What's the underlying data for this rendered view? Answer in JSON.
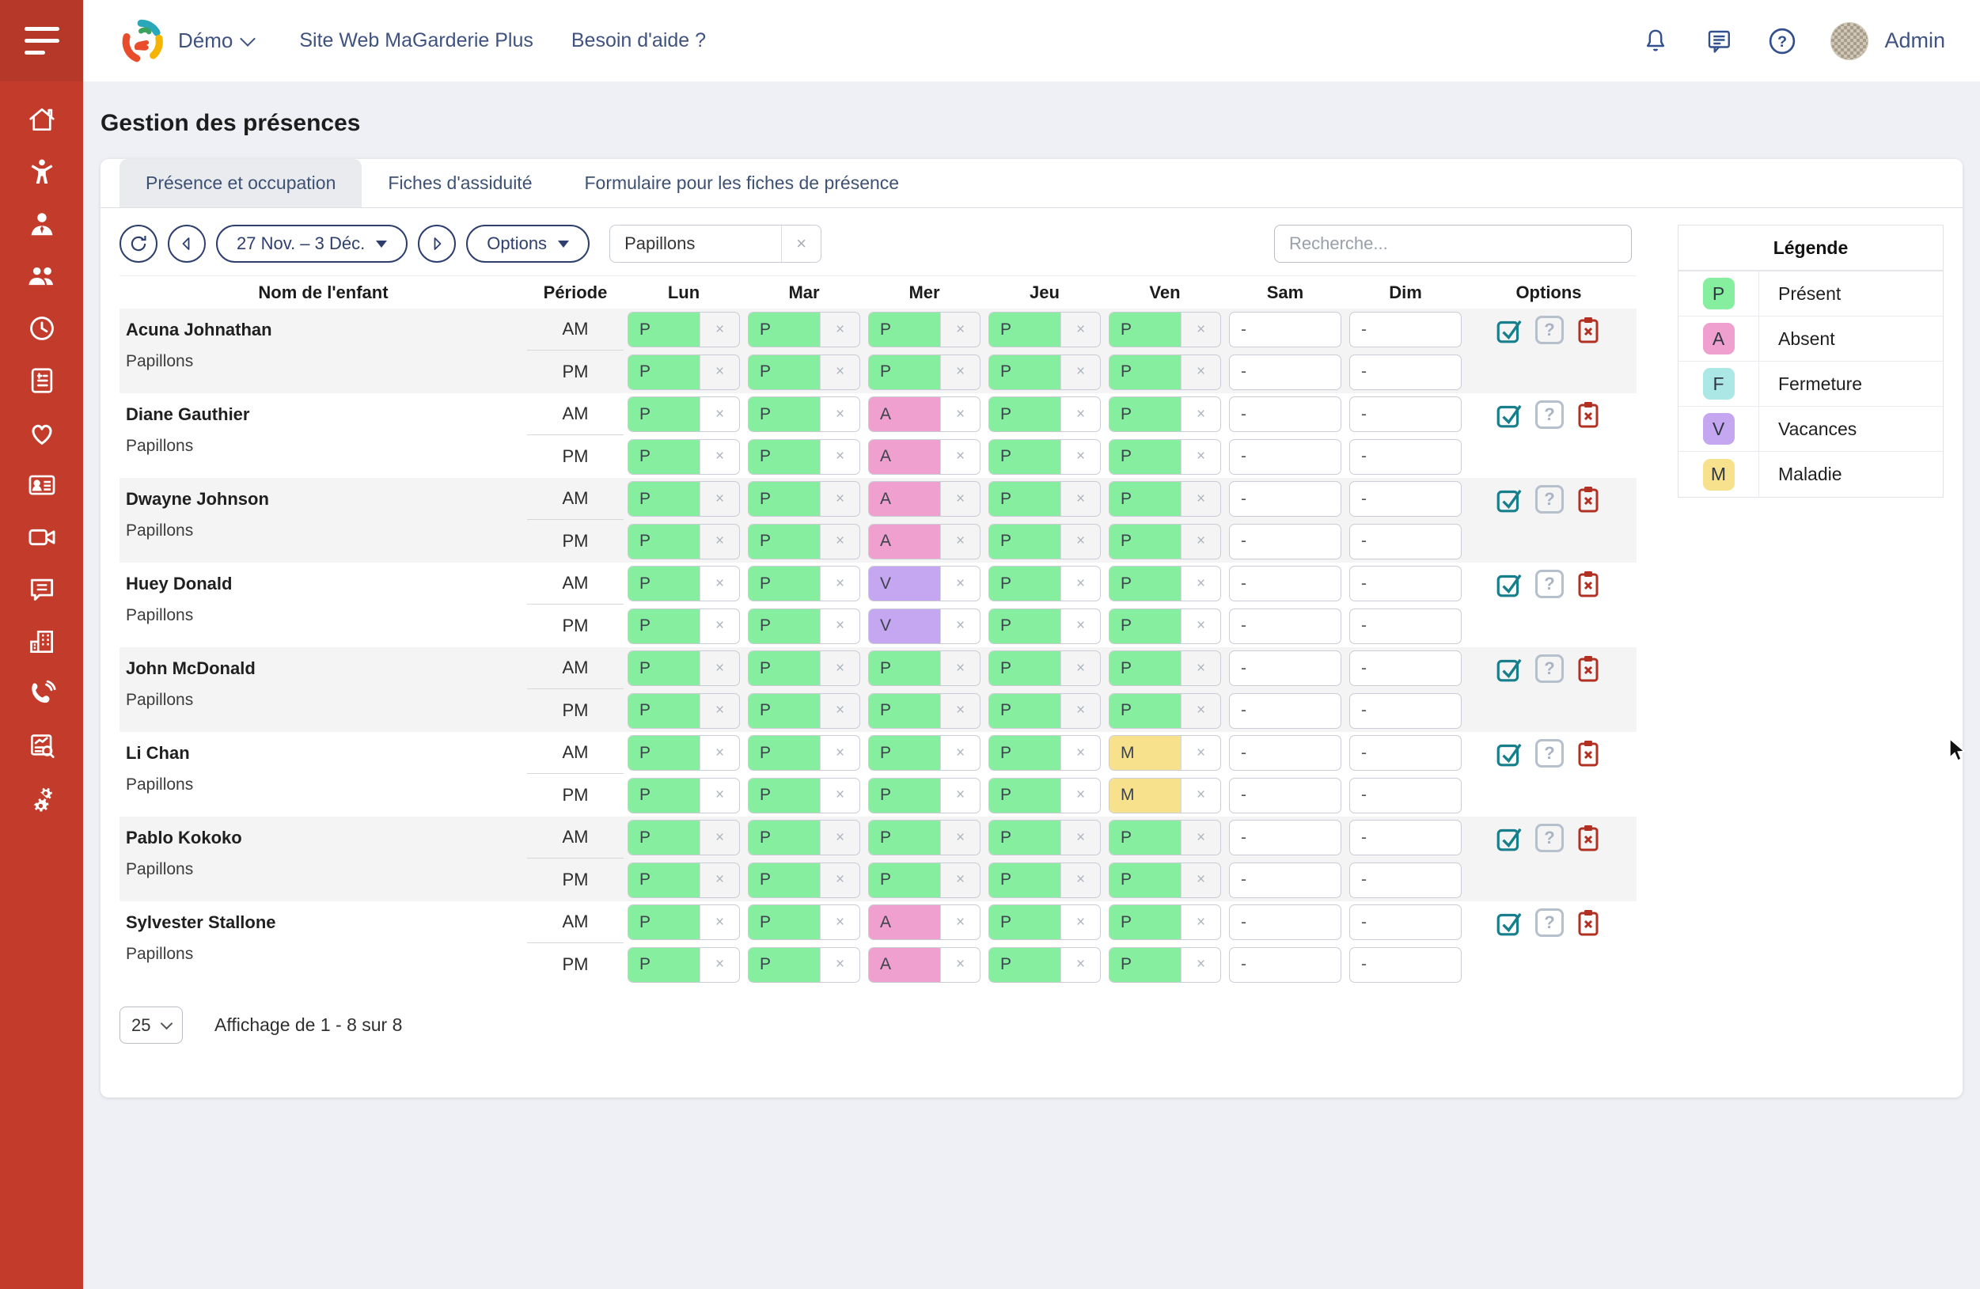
{
  "header": {
    "brand": "Démo",
    "links": [
      "Site Web MaGarderie Plus",
      "Besoin d'aide ?"
    ],
    "user": "Admin"
  },
  "page_title": "Gestion des présences",
  "tabs": [
    {
      "label": "Présence et occupation",
      "active": true
    },
    {
      "label": "Fiches d'assiduité",
      "active": false
    },
    {
      "label": "Formulaire pour les fiches de présence",
      "active": false
    }
  ],
  "toolbar": {
    "date_range": "27 Nov. – 3 Déc.",
    "options_label": "Options",
    "filter_chip": "Papillons",
    "search_placeholder": "Recherche..."
  },
  "table": {
    "columns": [
      "Nom de l'enfant",
      "Période",
      "Lun",
      "Mar",
      "Mer",
      "Jeu",
      "Ven",
      "Sam",
      "Dim",
      "Options"
    ],
    "period_labels": [
      "AM",
      "PM"
    ],
    "rows": [
      {
        "name": "Acuna Johnathan",
        "group": "Papillons",
        "am": [
          "P",
          "P",
          "P",
          "P",
          "P",
          "-",
          "-"
        ],
        "pm": [
          "P",
          "P",
          "P",
          "P",
          "P",
          "-",
          "-"
        ]
      },
      {
        "name": "Diane Gauthier",
        "group": "Papillons",
        "am": [
          "P",
          "P",
          "A",
          "P",
          "P",
          "-",
          "-"
        ],
        "pm": [
          "P",
          "P",
          "A",
          "P",
          "P",
          "-",
          "-"
        ]
      },
      {
        "name": "Dwayne Johnson",
        "group": "Papillons",
        "am": [
          "P",
          "P",
          "A",
          "P",
          "P",
          "-",
          "-"
        ],
        "pm": [
          "P",
          "P",
          "A",
          "P",
          "P",
          "-",
          "-"
        ]
      },
      {
        "name": "Huey Donald",
        "group": "Papillons",
        "am": [
          "P",
          "P",
          "V",
          "P",
          "P",
          "-",
          "-"
        ],
        "pm": [
          "P",
          "P",
          "V",
          "P",
          "P",
          "-",
          "-"
        ]
      },
      {
        "name": "John McDonald",
        "group": "Papillons",
        "am": [
          "P",
          "P",
          "P",
          "P",
          "P",
          "-",
          "-"
        ],
        "pm": [
          "P",
          "P",
          "P",
          "P",
          "P",
          "-",
          "-"
        ]
      },
      {
        "name": "Li Chan",
        "group": "Papillons",
        "am": [
          "P",
          "P",
          "P",
          "P",
          "M",
          "-",
          "-"
        ],
        "pm": [
          "P",
          "P",
          "P",
          "P",
          "M",
          "-",
          "-"
        ]
      },
      {
        "name": "Pablo Kokoko",
        "group": "Papillons",
        "am": [
          "P",
          "P",
          "P",
          "P",
          "P",
          "-",
          "-"
        ],
        "pm": [
          "P",
          "P",
          "P",
          "P",
          "P",
          "-",
          "-"
        ]
      },
      {
        "name": "Sylvester Stallone",
        "group": "Papillons",
        "am": [
          "P",
          "P",
          "A",
          "P",
          "P",
          "-",
          "-"
        ],
        "pm": [
          "P",
          "P",
          "A",
          "P",
          "P",
          "-",
          "-"
        ]
      }
    ]
  },
  "status_colors": {
    "P": "#86ef9f",
    "A": "#efa0ce",
    "F": "#abe7e4",
    "V": "#c4a7f0",
    "M": "#f8e18c"
  },
  "legend": {
    "title": "Légende",
    "items": [
      {
        "code": "P",
        "label": "Présent"
      },
      {
        "code": "A",
        "label": "Absent"
      },
      {
        "code": "F",
        "label": "Fermeture"
      },
      {
        "code": "V",
        "label": "Vacances"
      },
      {
        "code": "M",
        "label": "Maladie"
      }
    ]
  },
  "footer": {
    "page_size": "25",
    "display_text": "Affichage de 1 - 8 sur 8"
  },
  "sidebar": {
    "items": [
      "home",
      "children",
      "staff",
      "families",
      "schedule",
      "billing",
      "health",
      "id-cards",
      "video",
      "messages",
      "facility",
      "phone",
      "reports",
      "settings"
    ]
  },
  "colors": {
    "sidebar": "#c23b2b",
    "accent": "#2e3f6e",
    "header_link": "#3f5280"
  }
}
